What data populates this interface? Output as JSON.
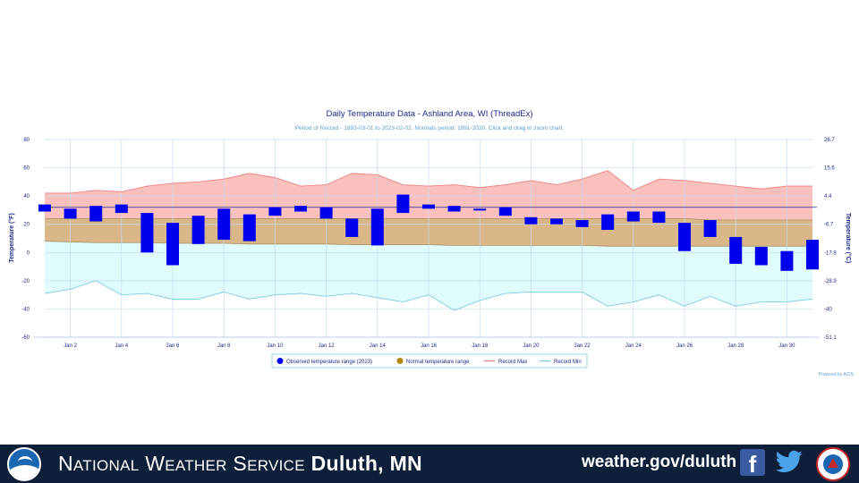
{
  "chart_data": {
    "type": "bar",
    "title": "Daily Temperature Data - Ashland Area, WI (ThreadEx)",
    "subtitle": "Period of Record - 1893-03-01 to 2023-02-02. Normals period: 1991-2020. Click and drag to zoom chart.",
    "ylabel": "Temperature (°F)",
    "ylabel_right": "Temperature (°C)",
    "ylim": [
      -60,
      80
    ],
    "yticks": [
      "80",
      "60",
      "40",
      "20",
      "0",
      "-20",
      "-40",
      "-60"
    ],
    "yticks_right": [
      "26.7",
      "15.6",
      "4.4",
      "-6.7",
      "-17.8",
      "-28.9",
      "-40",
      "-51.1"
    ],
    "xticks": [
      "Jan 2",
      "Jan 4",
      "Jan 6",
      "Jan 8",
      "Jan 10",
      "Jan 12",
      "Jan 14",
      "Jan 16",
      "Jan 18",
      "Jan 20",
      "Jan 22",
      "Jan 24",
      "Jan 26",
      "Jan 28",
      "Jan 30"
    ],
    "reference_line": 32,
    "days": [
      1,
      2,
      3,
      4,
      5,
      6,
      7,
      8,
      9,
      10,
      11,
      12,
      13,
      14,
      15,
      16,
      17,
      18,
      19,
      20,
      21,
      22,
      23,
      24,
      25,
      26,
      27,
      28,
      29,
      30,
      31
    ],
    "series": [
      {
        "name": "Observed temperature range (2023)",
        "type": "floating-bar",
        "color": "#0000ee",
        "high": [
          34,
          31,
          33,
          34,
          28,
          21,
          26,
          31,
          27,
          32,
          33,
          32,
          24,
          31,
          41,
          34,
          33,
          31,
          32,
          25,
          24,
          23,
          27,
          29,
          29,
          21,
          23,
          11,
          4,
          1,
          9
        ],
        "low": [
          29,
          24,
          22,
          28,
          0,
          -9,
          6,
          9,
          8,
          26,
          29,
          24,
          11,
          5,
          28,
          31,
          29,
          30,
          26,
          20,
          20,
          18,
          16,
          22,
          21,
          1,
          11,
          -8,
          -9,
          -13,
          -12
        ]
      },
      {
        "name": "Normal temperature range",
        "type": "area-range",
        "color": "#b8860b",
        "high": [
          24,
          24,
          24,
          24,
          24,
          24,
          24,
          24,
          24,
          24,
          24,
          24,
          24,
          24,
          24,
          24,
          24,
          24,
          24,
          24,
          24,
          24,
          24,
          24,
          24,
          24,
          23,
          23,
          23,
          23,
          23
        ],
        "low": [
          8,
          7.5,
          7,
          7,
          7,
          6.5,
          6.5,
          6.5,
          6,
          6,
          6,
          6,
          5.5,
          5.5,
          5.5,
          5.5,
          5,
          5,
          5,
          5,
          5,
          5,
          4.5,
          4.5,
          4.5,
          4.5,
          4.5,
          4.5,
          4.5,
          4.5,
          4.5
        ]
      },
      {
        "name": "Record Max",
        "type": "line",
        "color": "#f08080",
        "values": [
          42,
          42,
          44,
          43,
          47,
          49,
          50,
          52,
          56,
          53,
          47,
          48,
          56,
          55,
          48,
          47,
          48,
          46,
          48,
          51,
          48,
          52,
          58,
          44,
          52,
          51,
          49,
          47,
          45,
          47,
          47
        ]
      },
      {
        "name": "Record Min",
        "type": "line",
        "color": "#7ecbe8",
        "values": [
          -29,
          -26,
          -20,
          -30,
          -29,
          -33,
          -33,
          -28,
          -33,
          -30,
          -29,
          -31,
          -29,
          -32,
          -35,
          -30,
          -41,
          -34,
          -29,
          -28,
          -28,
          -28,
          -38,
          -35,
          -30,
          -38,
          -31,
          -38,
          -35,
          -35,
          -33
        ]
      }
    ],
    "legend": [
      "Observed temperature range (2023)",
      "Normal temperature range",
      "Record Max",
      "Record Min"
    ],
    "legend_position": "bottom-center",
    "credit": "Powered by ACIS",
    "grid": true
  },
  "footer": {
    "noaa_logo_text": "NOAA",
    "org_words": [
      {
        "cap": "N",
        "rest": "ational"
      },
      {
        "cap": "W",
        "rest": "eather"
      },
      {
        "cap": "S",
        "rest": "ervice"
      }
    ],
    "org_office": "Duluth, MN",
    "website": "weather.gov/duluth",
    "facebook_glyph": "f",
    "icons": [
      "noaa-logo",
      "facebook-icon",
      "twitter-icon",
      "nws-logo"
    ]
  }
}
